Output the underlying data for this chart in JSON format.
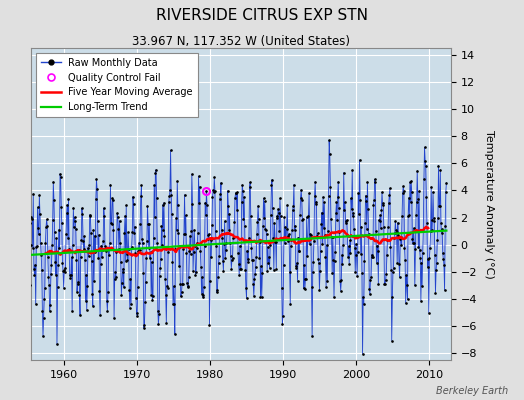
{
  "title": "RIVERSIDE CITRUS EXP STN",
  "subtitle": "33.967 N, 117.352 W (United States)",
  "ylabel": "Temperature Anomaly (°C)",
  "watermark": "Berkeley Earth",
  "year_start": 1955.0,
  "year_end": 2012.5,
  "ylim": [
    -8.5,
    14.5
  ],
  "yticks": [
    -8,
    -6,
    -4,
    -2,
    0,
    2,
    4,
    6,
    8,
    10,
    12,
    14
  ],
  "xticks": [
    1960,
    1970,
    1980,
    1990,
    2000,
    2010
  ],
  "bg_color": "#e0e0e0",
  "plot_bg_color": "#ccdde8",
  "grid_color": "white",
  "line_color": "#2244cc",
  "fill_color": "#8899ee",
  "moving_avg_color": "red",
  "trend_color": "#00cc00",
  "qc_color": "magenta",
  "seed": 12,
  "n_months": 690,
  "trend_slope": 0.022,
  "trend_intercept": -0.4,
  "ma_window": 60,
  "seasonal_amp": 3.0,
  "noise_std": 1.6,
  "legend_loc": "upper left",
  "title_fontsize": 11,
  "subtitle_fontsize": 8.5,
  "tick_fontsize": 8,
  "ylabel_fontsize": 8,
  "legend_fontsize": 7
}
